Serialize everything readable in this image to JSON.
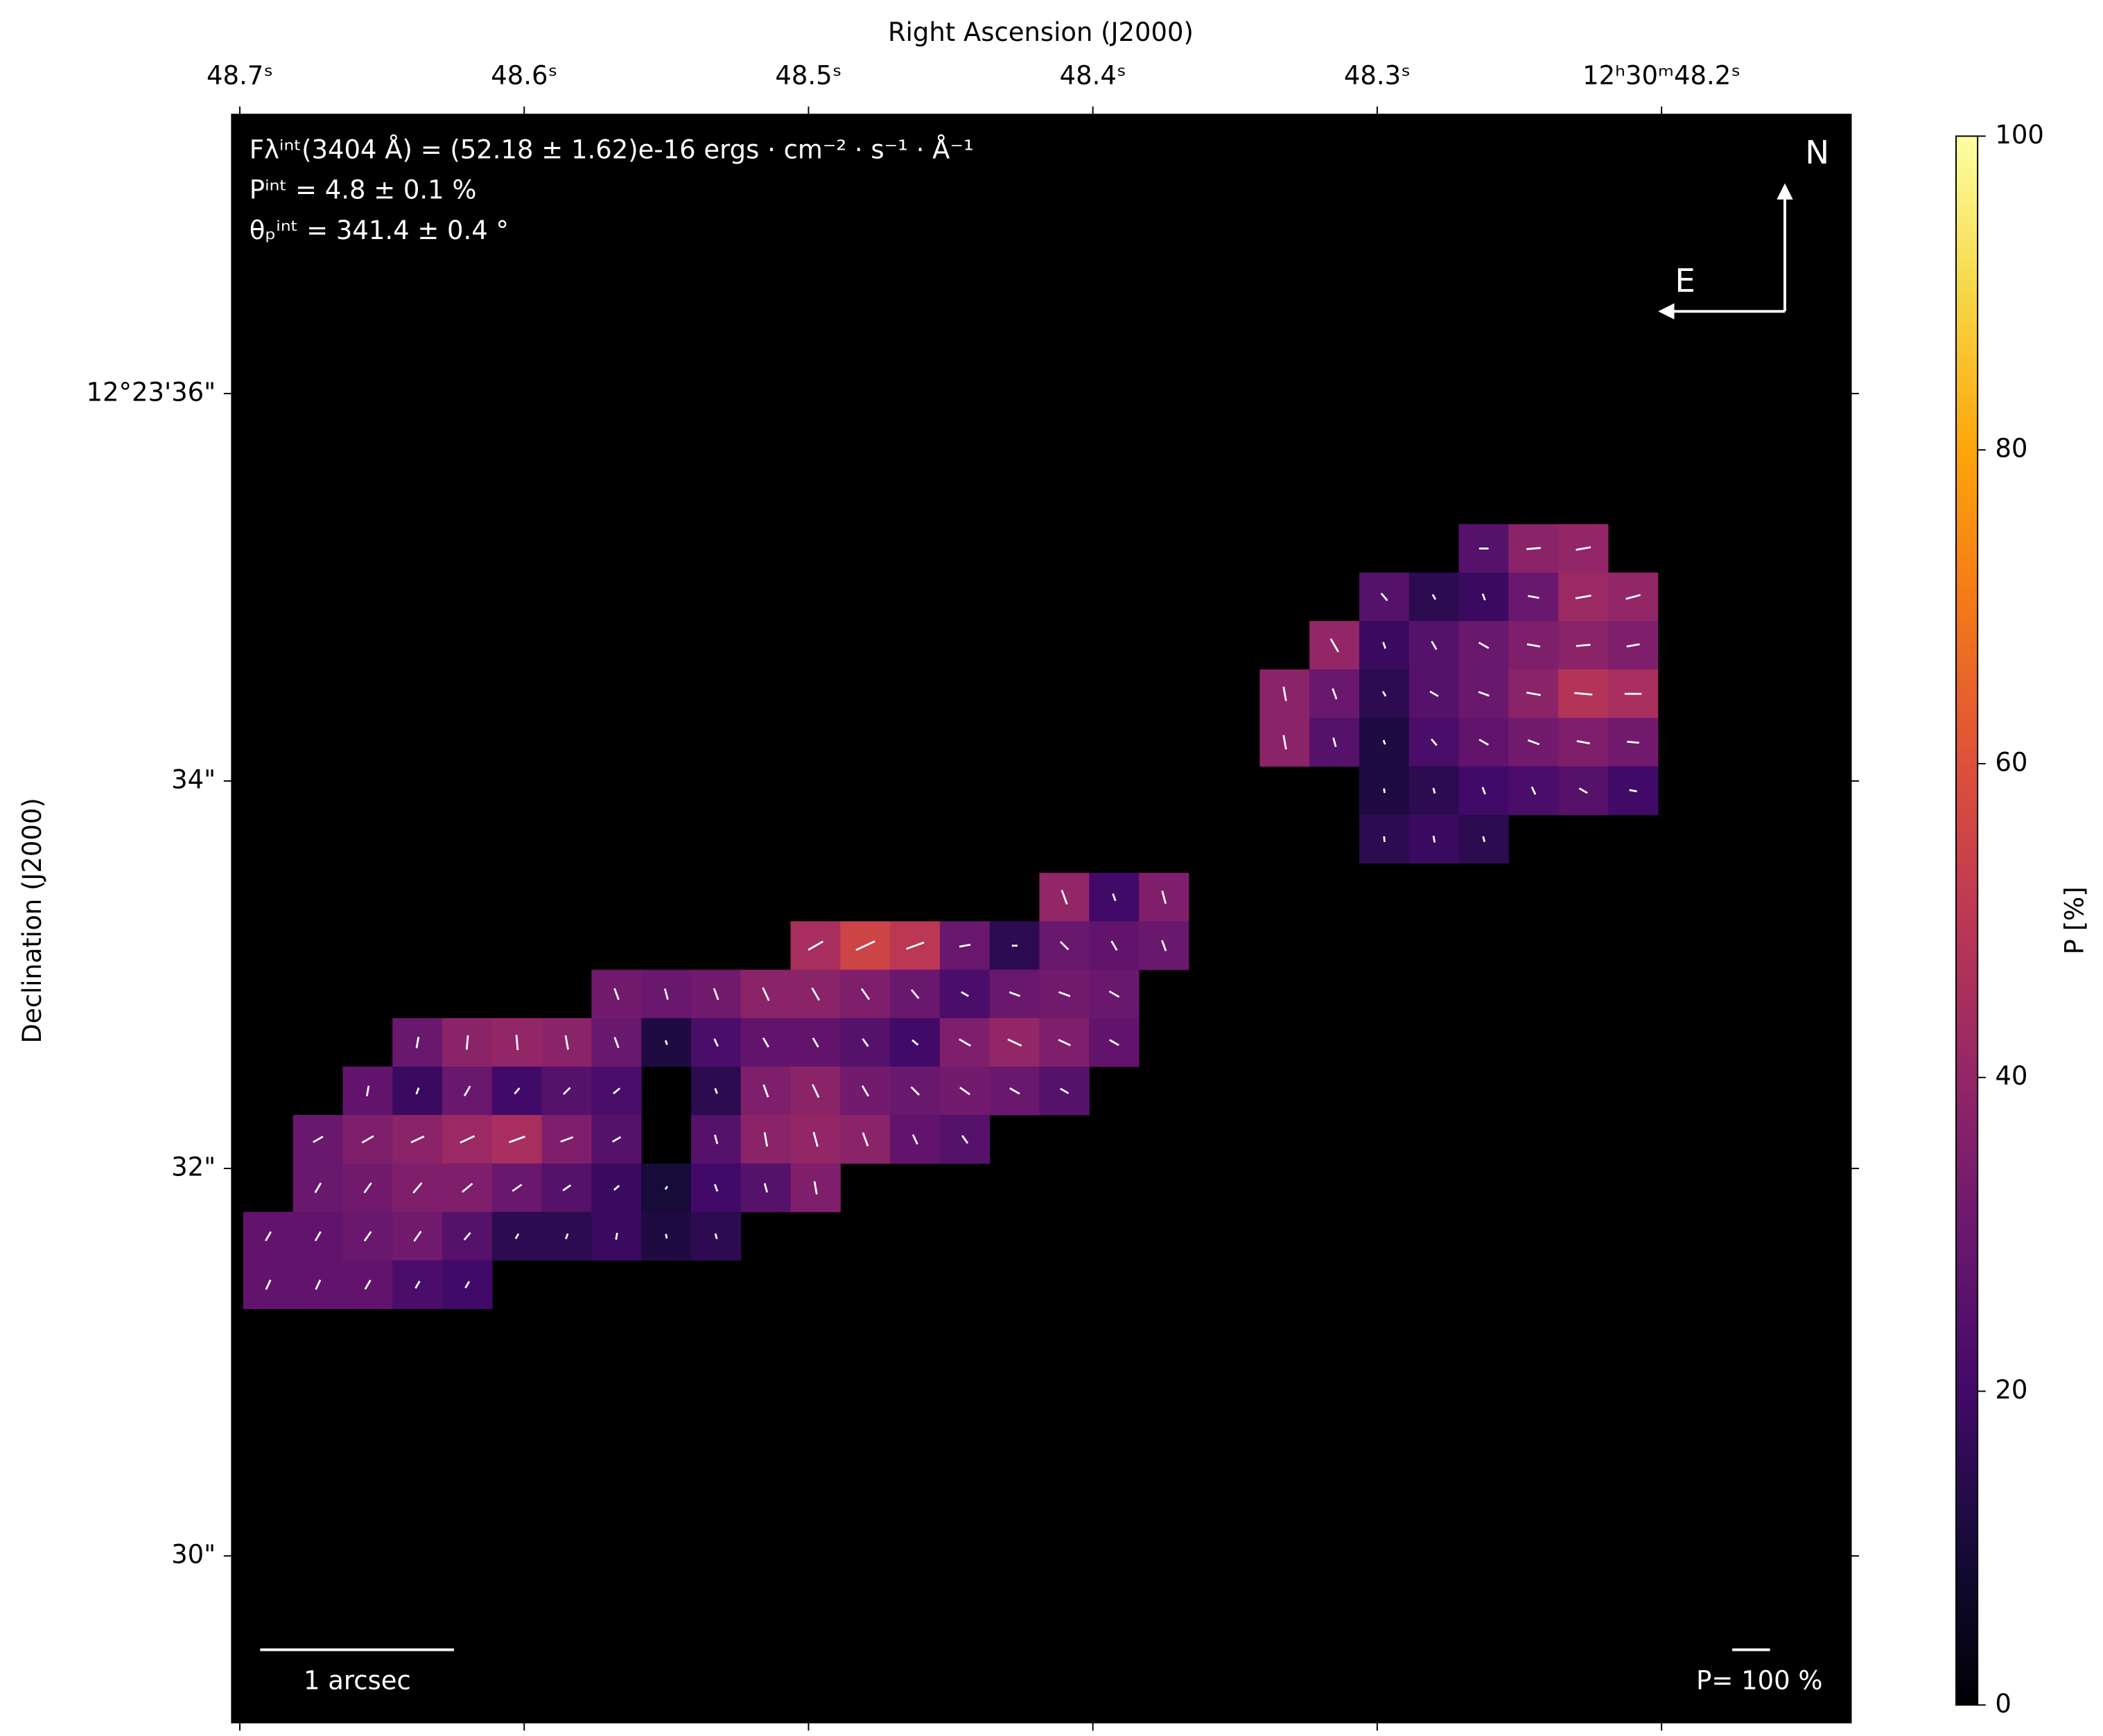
{
  "chart_data": {
    "type": "polarization_map",
    "x_label": "Right Ascension (J2000)",
    "y_label": "Declination (J2000)",
    "xlim": [
      48.7028,
      48.1334
    ],
    "ylim": [
      29.14,
      37.44
    ],
    "xticks": [
      {
        "value": 48.7,
        "label": "48.7ˢ"
      },
      {
        "value": 48.6,
        "label": "48.6ˢ"
      },
      {
        "value": 48.5,
        "label": "48.5ˢ"
      },
      {
        "value": 48.4,
        "label": "48.4ˢ"
      },
      {
        "value": 48.3,
        "label": "48.3ˢ"
      },
      {
        "value": 48.2,
        "label": "12ʰ30ᵐ48.2ˢ"
      }
    ],
    "yticks": [
      {
        "value": 36,
        "label": "12°23'36\""
      },
      {
        "value": 34,
        "label": "34\""
      },
      {
        "value": 32,
        "label": "32\""
      },
      {
        "value": 30,
        "label": "30\""
      }
    ],
    "colorbar": {
      "label": "P [%]",
      "colormap": "inferno",
      "lim": [
        0,
        100
      ],
      "ticks": [
        0,
        20,
        40,
        60,
        80,
        100
      ]
    },
    "annotations": [
      "Fλⁱⁿᵗ(3404 Å) = (52.18 ± 1.62)e-16 ergs · cm⁻² · s⁻¹ · Å⁻¹",
      "Pⁱⁿᵗ = 4.8 ± 0.1 %",
      "θₚⁱⁿᵗ = 341.4 ± 0.4 °"
    ],
    "compass": {
      "north": "N",
      "east": "E"
    },
    "scale_bar": {
      "value": 1,
      "label": "1 arcsec"
    },
    "vector_key": {
      "value": 100,
      "label": "P= 100 %"
    },
    "rows": [
      {
        "dec": 33.4,
        "ra": [
          48.41,
          48.3925,
          48.375
        ],
        "p": [
          40,
          20,
          35
        ],
        "theta": [
          20,
          20,
          15
        ]
      },
      {
        "dec": 33.15,
        "ra": [
          48.4975,
          48.48,
          48.4625,
          48.445,
          48.4275,
          48.41,
          48.3925,
          48.375
        ],
        "p": [
          45,
          55,
          50,
          30,
          15,
          30,
          28,
          30
        ],
        "theta": [
          120,
          115,
          110,
          100,
          90,
          45,
          30,
          20
        ]
      },
      {
        "dec": 32.9,
        "ra": [
          48.5675,
          48.55,
          48.5325,
          48.515,
          48.4975,
          48.48,
          48.4625,
          48.445,
          48.4275,
          48.41,
          48.3925
        ],
        "p": [
          32,
          30,
          32,
          38,
          38,
          35,
          30,
          22,
          30,
          32,
          30
        ],
        "theta": [
          20,
          15,
          20,
          25,
          30,
          35,
          40,
          60,
          70,
          70,
          60
        ]
      },
      {
        "dec": 32.65,
        "ra": [
          48.6375,
          48.62,
          48.6025,
          48.585,
          48.5675,
          48.55,
          48.5325,
          48.515,
          48.4975,
          48.48,
          48.4625,
          48.445,
          48.4275,
          48.41,
          48.3925
        ],
        "p": [
          30,
          38,
          40,
          38,
          30,
          12,
          22,
          28,
          28,
          25,
          20,
          35,
          40,
          35,
          28
        ],
        "theta": [
          170,
          175,
          5,
          10,
          20,
          20,
          25,
          30,
          30,
          35,
          50,
          60,
          65,
          65,
          60
        ]
      },
      {
        "dec": 32.4,
        "ra": [
          48.655,
          48.6375,
          48.62,
          48.6025,
          48.585,
          48.5675,
          48.5325,
          48.515,
          48.4975,
          48.48,
          48.4625,
          48.445,
          48.4275,
          48.41
        ],
        "p": [
          28,
          18,
          30,
          20,
          25,
          22,
          15,
          35,
          38,
          32,
          30,
          32,
          30,
          25
        ],
        "theta": [
          170,
          160,
          150,
          140,
          135,
          130,
          20,
          20,
          25,
          30,
          45,
          55,
          60,
          60
        ]
      },
      {
        "dec": 32.15,
        "ra": [
          48.6725,
          48.655,
          48.6375,
          48.62,
          48.6025,
          48.585,
          48.5675,
          48.5325,
          48.515,
          48.4975,
          48.48,
          48.4625,
          48.445
        ],
        "p": [
          30,
          35,
          38,
          42,
          45,
          35,
          25,
          25,
          38,
          40,
          38,
          28,
          25
        ],
        "theta": [
          120,
          120,
          115,
          115,
          110,
          110,
          120,
          15,
          10,
          15,
          20,
          25,
          35
        ]
      },
      {
        "dec": 31.9,
        "ra": [
          48.6725,
          48.655,
          48.6375,
          48.62,
          48.6025,
          48.585,
          48.5675,
          48.55,
          48.5325,
          48.515,
          48.4975
        ],
        "p": [
          30,
          32,
          35,
          35,
          30,
          25,
          18,
          10,
          20,
          25,
          35
        ],
        "theta": [
          150,
          145,
          140,
          130,
          125,
          125,
          130,
          150,
          20,
          15,
          10
        ]
      },
      {
        "dec": 31.65,
        "ra": [
          48.69,
          48.6725,
          48.655,
          48.6375,
          48.62,
          48.6025,
          48.585,
          48.5675,
          48.55,
          48.5325
        ],
        "p": [
          28,
          28,
          30,
          32,
          25,
          15,
          15,
          18,
          12,
          15
        ],
        "theta": [
          150,
          150,
          145,
          145,
          140,
          150,
          160,
          170,
          10,
          15
        ]
      },
      {
        "dec": 31.4,
        "ra": [
          48.69,
          48.6725,
          48.655,
          48.6375,
          48.62
        ],
        "p": [
          28,
          28,
          28,
          22,
          20
        ],
        "theta": [
          155,
          155,
          150,
          150,
          150
        ]
      },
      {
        "dec": 35.2,
        "ra": [
          48.2625,
          48.245,
          48.2275
        ],
        "p": [
          25,
          38,
          40
        ],
        "theta": [
          90,
          95,
          100
        ]
      },
      {
        "dec": 34.95,
        "ra": [
          48.2975,
          48.28,
          48.2625,
          48.245,
          48.2275,
          48.21
        ],
        "p": [
          25,
          15,
          18,
          30,
          42,
          40
        ],
        "theta": [
          40,
          30,
          20,
          80,
          100,
          105
        ]
      },
      {
        "dec": 34.7,
        "ra": [
          48.315,
          48.2975,
          48.28,
          48.2625,
          48.245,
          48.2275,
          48.21
        ],
        "p": [
          40,
          18,
          25,
          30,
          35,
          38,
          35
        ],
        "theta": [
          30,
          20,
          30,
          60,
          80,
          95,
          100
        ]
      },
      {
        "dec": 34.45,
        "ra": [
          48.3325,
          48.315,
          48.2975,
          48.28,
          48.2625,
          48.245,
          48.2275,
          48.21
        ],
        "p": [
          38,
          30,
          15,
          25,
          30,
          38,
          48,
          45
        ],
        "theta": [
          10,
          20,
          30,
          60,
          70,
          80,
          85,
          90
        ]
      },
      {
        "dec": 34.2,
        "ra": [
          48.3325,
          48.315,
          48.2975,
          48.28,
          48.2625,
          48.245,
          48.2275,
          48.21
        ],
        "p": [
          38,
          25,
          12,
          22,
          28,
          32,
          35,
          32
        ],
        "theta": [
          10,
          15,
          20,
          40,
          60,
          70,
          80,
          85
        ]
      },
      {
        "dec": 33.95,
        "ra": [
          48.2975,
          48.28,
          48.2625,
          48.245,
          48.2275,
          48.21
        ],
        "p": [
          12,
          15,
          20,
          22,
          25,
          20
        ],
        "theta": [
          10,
          15,
          20,
          25,
          60,
          80
        ]
      },
      {
        "dec": 33.7,
        "ra": [
          48.2975,
          48.28,
          48.2625
        ],
        "p": [
          15,
          18,
          15
        ],
        "theta": [
          5,
          10,
          15
        ]
      }
    ]
  }
}
